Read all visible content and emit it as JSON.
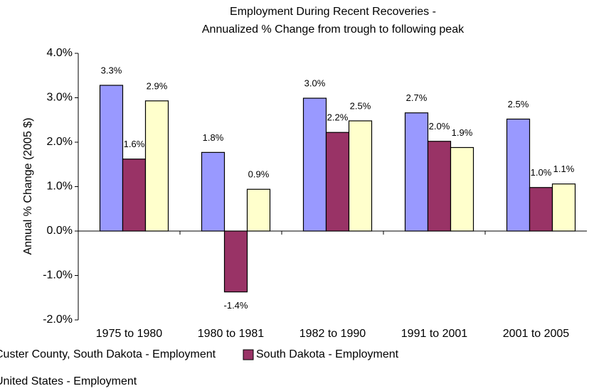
{
  "chart_data": {
    "type": "bar",
    "title": "Employment During Recent Recoveries -",
    "subtitle": "Annualized % Change from trough to following peak",
    "y_label": "Annual % Change (2005 $)",
    "categories": [
      "1975 to 1980",
      "1980 to 1981",
      "1982 to 1990",
      "1991 to 2001",
      "2001 to 2005"
    ],
    "series": [
      {
        "name": "Custer County, South Dakota - Employment",
        "color": "#9999ff",
        "values": [
          3.28,
          1.77,
          2.99,
          2.66,
          2.52
        ],
        "value_labels": [
          "3.3%",
          "1.8%",
          "3.0%",
          "2.7%",
          "2.5%"
        ]
      },
      {
        "name": "South Dakota - Employment",
        "color": "#993366",
        "values": [
          1.62,
          -1.37,
          2.22,
          2.02,
          0.98
        ],
        "value_labels": [
          "1.6%",
          "-1.4%",
          "2.2%",
          "2.0%",
          "1.0%"
        ]
      },
      {
        "name": "United States - Employment",
        "color": "#ffffcc",
        "values": [
          2.93,
          0.94,
          2.48,
          1.88,
          1.06
        ],
        "value_labels": [
          "2.9%",
          "0.9%",
          "2.5%",
          "1.9%",
          "1.1%"
        ]
      }
    ],
    "ylim": [
      -2,
      4
    ],
    "yticks": [
      {
        "value": -2,
        "label": "-2.0%"
      },
      {
        "value": -1,
        "label": "-1.0%"
      },
      {
        "value": 0,
        "label": "0.0%"
      },
      {
        "value": 1,
        "label": "1.0%"
      },
      {
        "value": 2,
        "label": "2.0%"
      },
      {
        "value": 3,
        "label": "3.0%"
      },
      {
        "value": 4,
        "label": "4.0%"
      }
    ],
    "grid": false,
    "legend": "bottom"
  }
}
